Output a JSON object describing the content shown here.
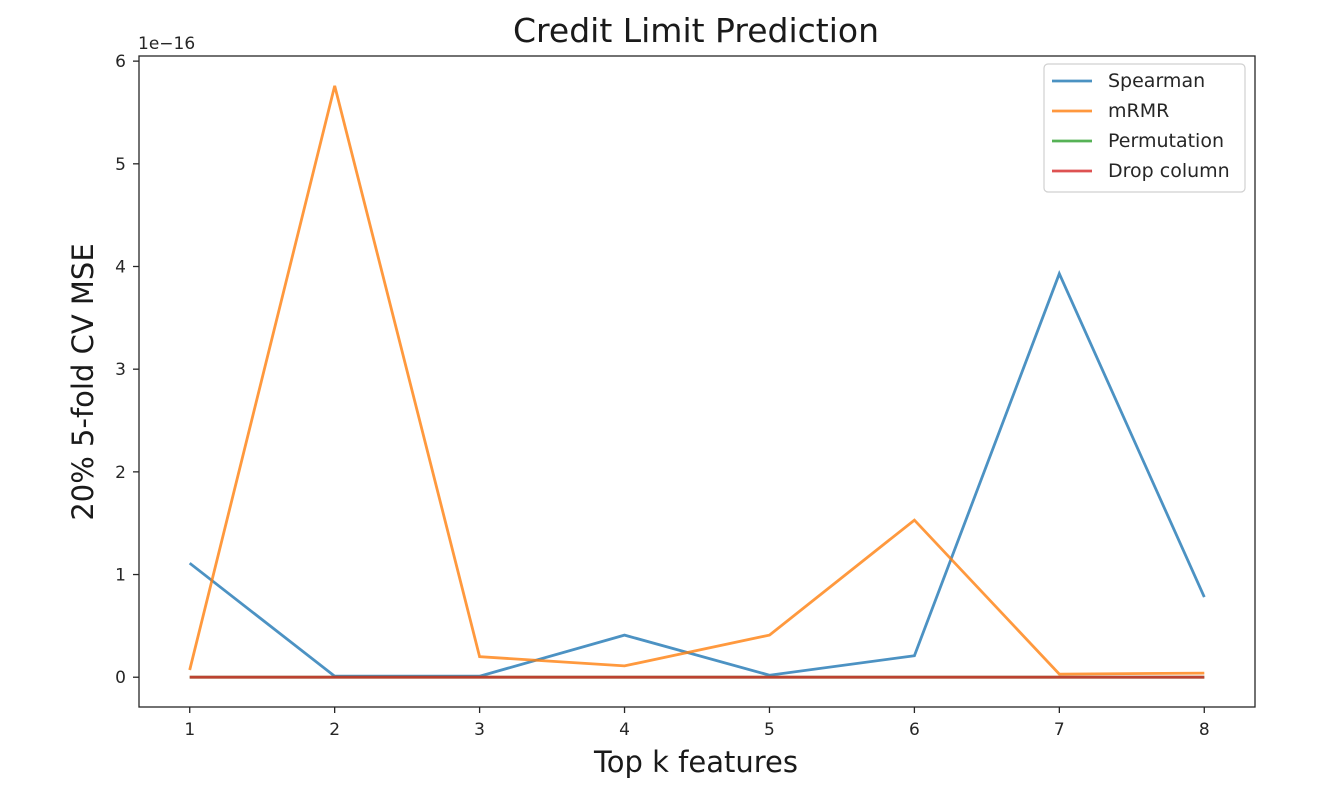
{
  "chart_data": {
    "type": "line",
    "title": "Credit Limit Prediction",
    "xlabel": "Top k features",
    "ylabel": "20% 5-fold CV MSE",
    "y_offset_label": "1e−16",
    "x": [
      1,
      2,
      3,
      4,
      5,
      6,
      7,
      8
    ],
    "xticks": [
      "1",
      "2",
      "3",
      "4",
      "5",
      "6",
      "7",
      "8"
    ],
    "yticks": [
      "0",
      "1",
      "2",
      "3",
      "4",
      "5",
      "6"
    ],
    "xlim": [
      0.65,
      8.35
    ],
    "ylim": [
      -0.29,
      6.05
    ],
    "grid": false,
    "legend_position": "top-right",
    "series": [
      {
        "name": "Spearman",
        "color": "#1f77b4",
        "values": [
          1.11,
          0.01,
          0.01,
          0.41,
          0.02,
          0.21,
          3.93,
          0.78
        ]
      },
      {
        "name": "mRMR",
        "color": "#ff7f0e",
        "values": [
          0.07,
          5.76,
          0.2,
          0.11,
          0.41,
          1.53,
          0.03,
          0.04
        ]
      },
      {
        "name": "Permutation",
        "color": "#2ca02c",
        "values": [
          0.0,
          0.0,
          0.0,
          0.0,
          0.0,
          0.0,
          0.0,
          0.0
        ]
      },
      {
        "name": "Drop column",
        "color": "#d62728",
        "values": [
          0.0,
          0.0,
          0.0,
          0.0,
          0.0,
          0.0,
          0.0,
          0.0
        ]
      }
    ]
  }
}
